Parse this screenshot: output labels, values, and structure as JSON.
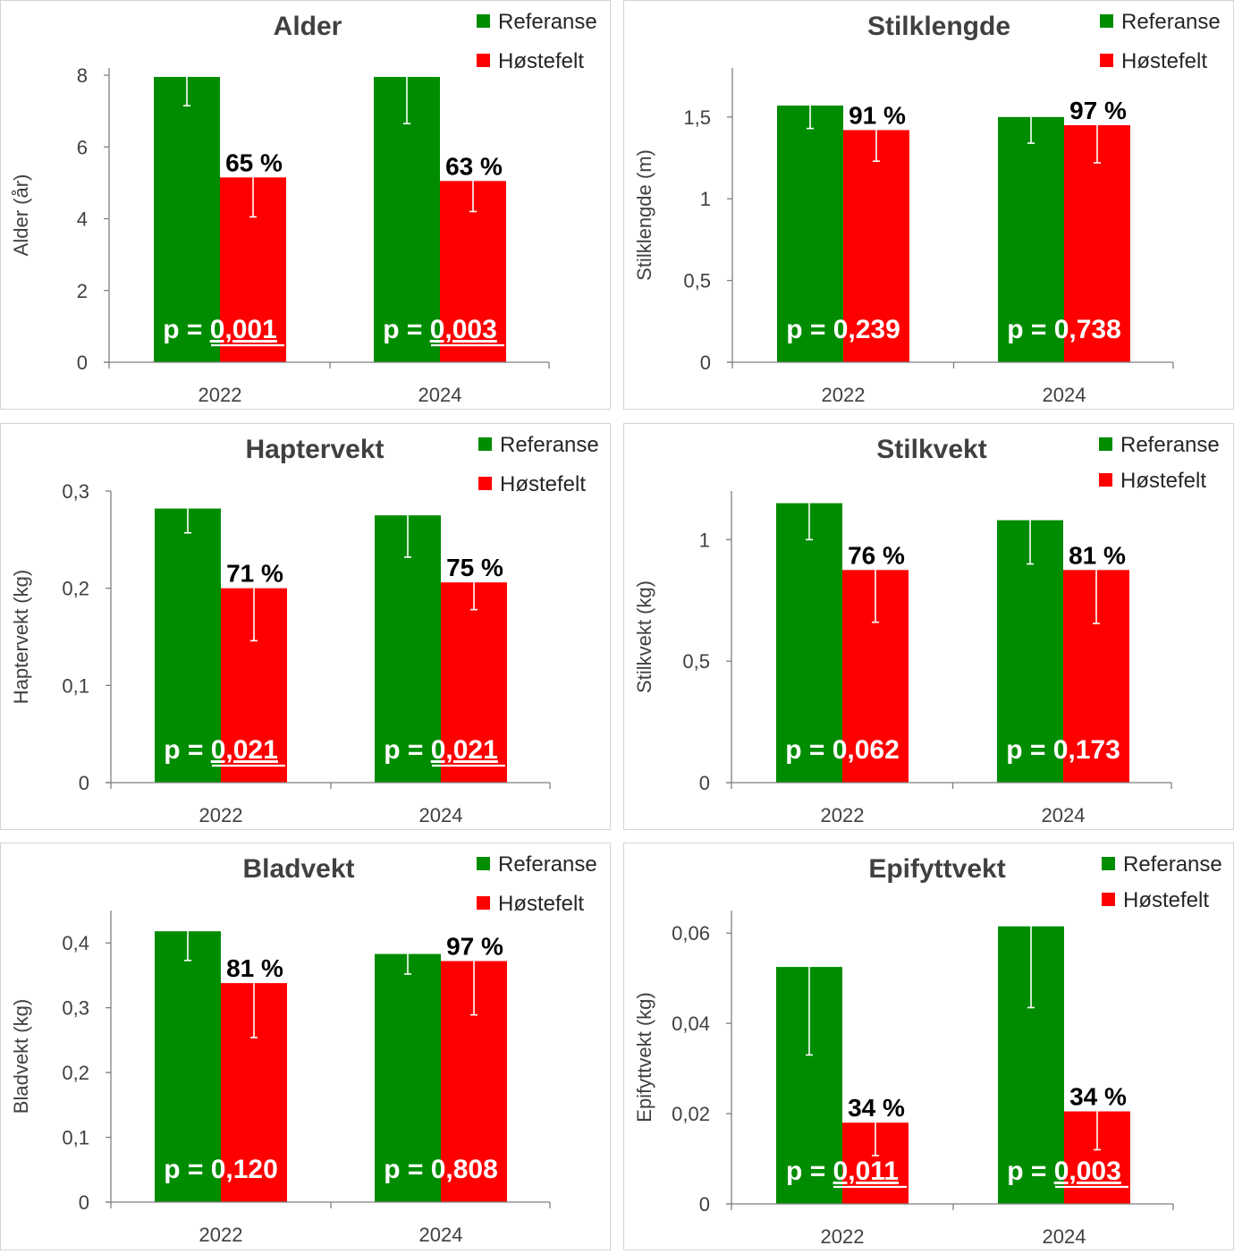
{
  "colors": {
    "referanse": "#008c00",
    "hostefelt": "#ff0000",
    "axis": "#7f7f7f",
    "errorbar": "#ffffff"
  },
  "legend": {
    "referanse": "Referanse",
    "hostefelt": "Høstefelt"
  },
  "chart_data": [
    {
      "type": "bar",
      "title": "Alder",
      "ylabel": "Alder  (år)",
      "categories": [
        "2022",
        "2024"
      ],
      "ylim": [
        0,
        8.2
      ],
      "yticks": [
        0,
        2,
        4,
        6,
        8
      ],
      "ytick_labels": [
        "0",
        "2",
        "4",
        "6",
        "8"
      ],
      "series": [
        {
          "name": "Referanse",
          "values": [
            7.95,
            7.95
          ],
          "err_low": [
            7.15,
            6.65
          ]
        },
        {
          "name": "Høstefelt",
          "values": [
            5.15,
            5.05
          ],
          "err_low": [
            4.05,
            4.2
          ]
        }
      ],
      "pct_labels": [
        "65 %",
        "63 %"
      ],
      "p_prefix": "p = ",
      "p_values": [
        "0,001",
        "0,003"
      ],
      "p_underlined": [
        true,
        true
      ]
    },
    {
      "type": "bar",
      "title": "Stilklengde",
      "ylabel": "Stilklengde  (m)",
      "categories": [
        "2022",
        "2024"
      ],
      "ylim": [
        0,
        1.8
      ],
      "yticks": [
        0,
        0.5,
        1,
        1.5
      ],
      "ytick_labels": [
        "0",
        "0,5",
        "1",
        "1,5"
      ],
      "series": [
        {
          "name": "Referanse",
          "values": [
            1.57,
            1.5
          ],
          "err_low": [
            1.43,
            1.34
          ]
        },
        {
          "name": "Høstefelt",
          "values": [
            1.42,
            1.45
          ],
          "err_low": [
            1.23,
            1.22
          ]
        }
      ],
      "pct_labels": [
        "91 %",
        "97 %"
      ],
      "p_prefix": "p = ",
      "p_values": [
        "0,239",
        "0,738"
      ],
      "p_underlined": [
        false,
        false
      ]
    },
    {
      "type": "bar",
      "title": "Haptervekt",
      "ylabel": "Haptervekt  (kg)",
      "categories": [
        "2022",
        "2024"
      ],
      "ylim": [
        0,
        0.3
      ],
      "yticks": [
        0,
        0.1,
        0.2,
        0.3
      ],
      "ytick_labels": [
        "0",
        "0,1",
        "0,2",
        "0,3"
      ],
      "series": [
        {
          "name": "Referanse",
          "values": [
            0.282,
            0.275
          ],
          "err_low": [
            0.257,
            0.232
          ]
        },
        {
          "name": "Høstefelt",
          "values": [
            0.2,
            0.206
          ],
          "err_low": [
            0.146,
            0.178
          ]
        }
      ],
      "pct_labels": [
        "71 %",
        "75 %"
      ],
      "p_prefix": "p = ",
      "p_values": [
        "0,021",
        "0,021"
      ],
      "p_underlined": [
        true,
        true
      ]
    },
    {
      "type": "bar",
      "title": "Stilkvekt",
      "ylabel": "Stilkvekt  (kg)",
      "categories": [
        "2022",
        "2024"
      ],
      "ylim": [
        0,
        1.2
      ],
      "yticks": [
        0,
        0.5,
        1
      ],
      "ytick_labels": [
        "0",
        "0,5",
        "1"
      ],
      "series": [
        {
          "name": "Referanse",
          "values": [
            1.15,
            1.08
          ],
          "err_low": [
            1.0,
            0.9
          ]
        },
        {
          "name": "Høstefelt",
          "values": [
            0.875,
            0.875
          ],
          "err_low": [
            0.66,
            0.655
          ]
        }
      ],
      "pct_labels": [
        "76 %",
        "81 %"
      ],
      "p_prefix": "p = ",
      "p_values": [
        "0,062",
        "0,173"
      ],
      "p_underlined": [
        false,
        false
      ]
    },
    {
      "type": "bar",
      "title": "Bladvekt",
      "ylabel": "Bladvekt  (kg)",
      "categories": [
        "2022",
        "2024"
      ],
      "ylim": [
        0,
        0.45
      ],
      "yticks": [
        0,
        0.1,
        0.2,
        0.3,
        0.4
      ],
      "ytick_labels": [
        "0",
        "0,1",
        "0,2",
        "0,3",
        "0,4"
      ],
      "series": [
        {
          "name": "Referanse",
          "values": [
            0.418,
            0.383
          ],
          "err_low": [
            0.373,
            0.352
          ]
        },
        {
          "name": "Høstefelt",
          "values": [
            0.338,
            0.372
          ],
          "err_low": [
            0.254,
            0.289
          ]
        }
      ],
      "pct_labels": [
        "81 %",
        "97 %"
      ],
      "p_prefix": "p = ",
      "p_values": [
        "0,120",
        "0,808"
      ],
      "p_underlined": [
        false,
        false
      ]
    },
    {
      "type": "bar",
      "title": "Epifyttvekt",
      "ylabel": "Epifyttvekt  (kg)",
      "categories": [
        "2022",
        "2024"
      ],
      "ylim": [
        0,
        0.065
      ],
      "yticks": [
        0,
        0.02,
        0.04,
        0.06
      ],
      "ytick_labels": [
        "0",
        "0,02",
        "0,04",
        "0,06"
      ],
      "series": [
        {
          "name": "Referanse",
          "values": [
            0.0525,
            0.0615
          ],
          "err_low": [
            0.033,
            0.0435
          ]
        },
        {
          "name": "Høstefelt",
          "values": [
            0.018,
            0.0205
          ],
          "err_low": [
            0.0107,
            0.012
          ]
        }
      ],
      "pct_labels": [
        "34 %",
        "34 %"
      ],
      "p_prefix": "p = ",
      "p_values": [
        "0,011",
        "0,003"
      ],
      "p_underlined": [
        true,
        true
      ]
    }
  ]
}
